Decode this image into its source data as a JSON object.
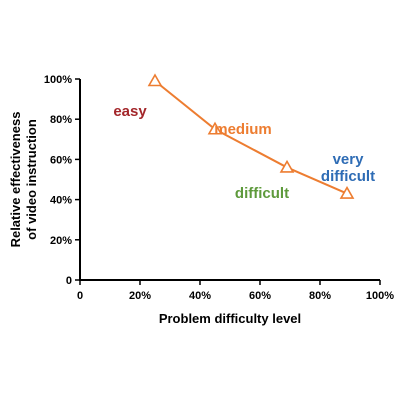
{
  "chart_data": {
    "type": "line",
    "title": "",
    "xlabel": "Problem difficulty level",
    "ylabel_lines": [
      "Relative effectiveness",
      "of video instruction"
    ],
    "x": [
      25,
      45,
      69,
      89
    ],
    "y": [
      99,
      75,
      56,
      43
    ],
    "xlim": [
      0,
      100
    ],
    "ylim": [
      0,
      100
    ],
    "x_ticks": [
      0,
      20,
      40,
      60,
      80,
      100
    ],
    "x_tick_labels": [
      "0",
      "20%",
      "40%",
      "60%",
      "80%",
      "100%"
    ],
    "y_ticks": [
      0,
      20,
      40,
      60,
      80,
      100
    ],
    "y_tick_labels": [
      "0",
      "20%",
      "40%",
      "60%",
      "80%",
      "100%"
    ],
    "marker": "open-triangle",
    "line_color": "#ED7D31",
    "grid": false,
    "legend": "none",
    "annotations": [
      {
        "text": "easy",
        "color": "#A3262A",
        "lines": [
          "easy"
        ]
      },
      {
        "text": "medium",
        "color": "#ED7D31",
        "lines": [
          "medium"
        ]
      },
      {
        "text": "difficult",
        "color": "#5E9A3C",
        "lines": [
          "difficult"
        ]
      },
      {
        "text": "very difficult",
        "color": "#2E6CB5",
        "lines": [
          "very",
          "difficult"
        ]
      }
    ]
  }
}
